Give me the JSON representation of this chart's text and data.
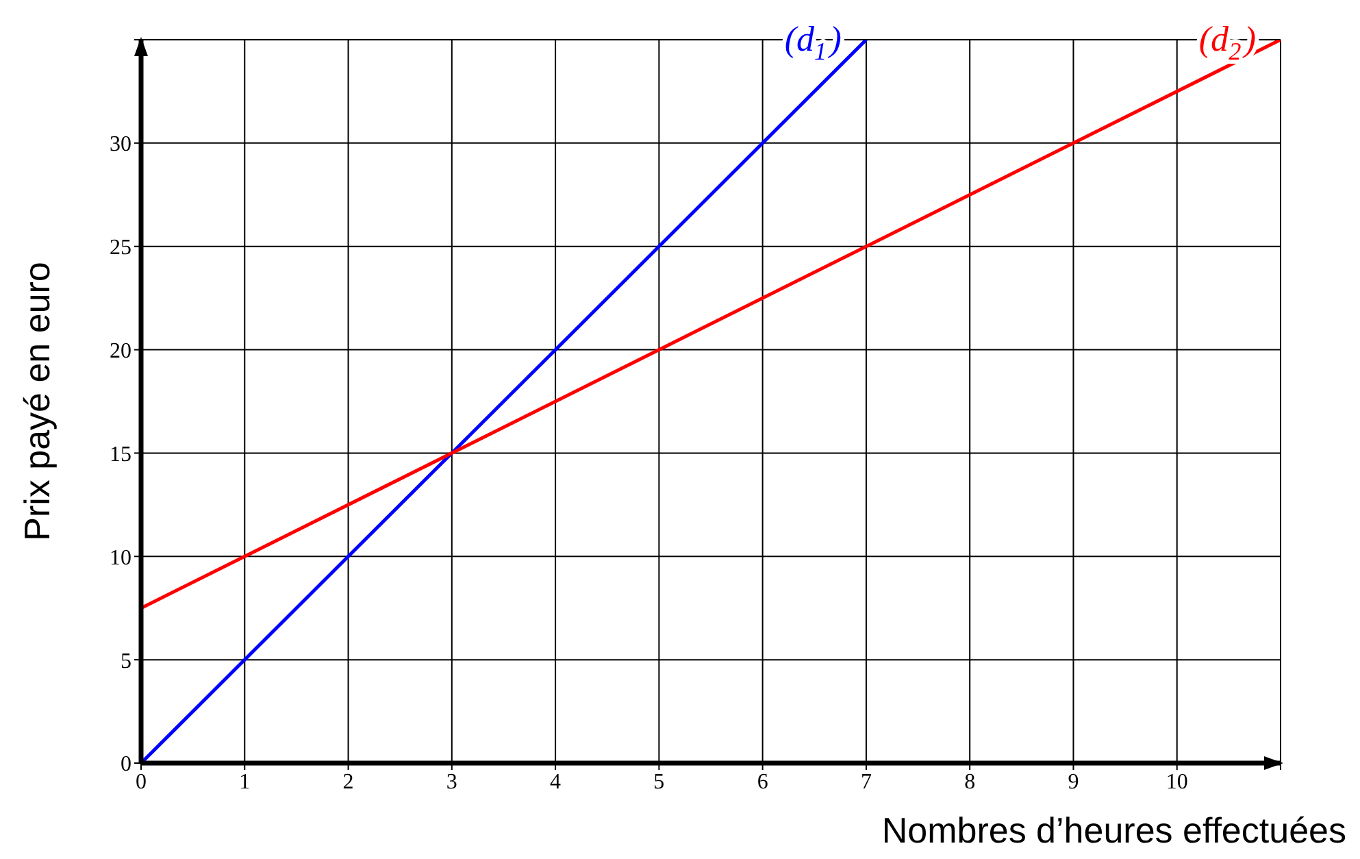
{
  "chart_data": {
    "type": "line",
    "xlabel": "Nombres d’heures effectuées",
    "ylabel": "Prix payé en euro",
    "series": [
      {
        "name": "(d$_{1}$)",
        "color": "#0000ff",
        "x": [
          0,
          7
        ],
        "values": [
          0,
          35
        ]
      },
      {
        "name": "(d$_{2}$)",
        "color": "#ff0000",
        "x": [
          0,
          11
        ],
        "values": [
          7.5,
          35
        ]
      }
    ],
    "xlim": [
      0,
      11
    ],
    "ylim": [
      0,
      35
    ],
    "xticks": [
      0,
      1,
      2,
      3,
      4,
      5,
      6,
      7,
      8,
      9,
      10,
      {
        "value": 11,
        "label": null
      }
    ],
    "yticks": [
      0,
      5,
      10,
      15,
      20,
      25,
      30,
      {
        "value": 35,
        "label": null
      }
    ],
    "grid": true,
    "marker": "none",
    "line_style": "solid"
  }
}
